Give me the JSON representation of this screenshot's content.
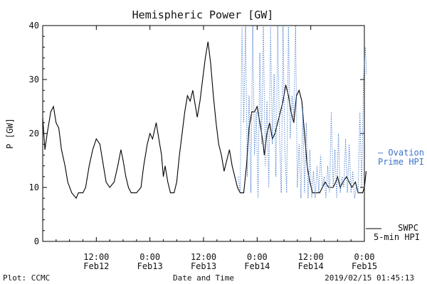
{
  "chart_data": {
    "type": "line",
    "title": "Hemispheric Power [GW]",
    "xlabel": "Date and Time",
    "ylabel": "P [GW]",
    "ylim": [
      0,
      40
    ],
    "yticks": [
      "0",
      "10",
      "20",
      "30",
      "40"
    ],
    "xlim_hours": [
      0,
      72
    ],
    "xticks": [
      {
        "time": "12:00",
        "date": "Feb12"
      },
      {
        "time": "0:00",
        "date": "Feb13"
      },
      {
        "time": "12:00",
        "date": "Feb13"
      },
      {
        "time": "0:00",
        "date": "Feb14"
      },
      {
        "time": "12:00",
        "date": "Feb14"
      },
      {
        "time": "0:00",
        "date": "Feb15"
      }
    ],
    "xtick_hours": [
      12,
      24,
      36,
      48,
      60,
      72
    ],
    "grid": false,
    "series": [
      {
        "name": "SWPC 5-min HPI",
        "color": "#000000",
        "style": "solid",
        "points": [
          [
            0,
            23
          ],
          [
            0.5,
            17
          ],
          [
            1,
            20
          ],
          [
            1.8,
            24
          ],
          [
            2.4,
            25
          ],
          [
            3,
            22
          ],
          [
            3.6,
            21
          ],
          [
            4.2,
            17
          ],
          [
            5,
            14
          ],
          [
            5.6,
            11
          ],
          [
            6.5,
            9
          ],
          [
            7.5,
            8
          ],
          [
            8,
            9
          ],
          [
            9,
            9
          ],
          [
            9.6,
            10
          ],
          [
            10.4,
            14
          ],
          [
            11.2,
            17
          ],
          [
            12,
            19
          ],
          [
            12.8,
            18
          ],
          [
            13.4,
            15
          ],
          [
            14.2,
            11
          ],
          [
            15,
            10
          ],
          [
            16,
            11
          ],
          [
            16.8,
            14
          ],
          [
            17.5,
            17
          ],
          [
            18,
            15
          ],
          [
            18.6,
            12
          ],
          [
            19.2,
            10
          ],
          [
            19.8,
            9
          ],
          [
            21,
            9
          ],
          [
            22,
            10
          ],
          [
            22.6,
            14
          ],
          [
            23.4,
            18
          ],
          [
            24,
            20
          ],
          [
            24.6,
            19
          ],
          [
            25.4,
            22
          ],
          [
            26,
            19
          ],
          [
            26.6,
            16
          ],
          [
            27,
            12
          ],
          [
            27.4,
            14
          ],
          [
            28,
            11
          ],
          [
            28.6,
            9
          ],
          [
            29.4,
            9
          ],
          [
            30,
            11
          ],
          [
            30.6,
            16
          ],
          [
            31.2,
            20
          ],
          [
            31.8,
            24
          ],
          [
            32.4,
            27
          ],
          [
            33,
            26
          ],
          [
            33.6,
            28
          ],
          [
            34,
            26
          ],
          [
            34.6,
            23
          ],
          [
            35.2,
            26
          ],
          [
            35.8,
            30
          ],
          [
            36.4,
            34
          ],
          [
            37,
            37
          ],
          [
            37.6,
            33
          ],
          [
            38.2,
            27
          ],
          [
            38.8,
            22
          ],
          [
            39.4,
            18
          ],
          [
            40,
            16
          ],
          [
            40.6,
            13
          ],
          [
            41.2,
            15
          ],
          [
            41.8,
            17
          ],
          [
            42.4,
            14
          ],
          [
            43,
            12
          ],
          [
            43.6,
            10
          ],
          [
            44.2,
            9
          ],
          [
            45,
            9
          ],
          [
            45.6,
            14
          ],
          [
            46.2,
            21
          ],
          [
            46.8,
            24
          ],
          [
            47.4,
            24
          ],
          [
            48,
            25
          ],
          [
            48.6,
            22
          ],
          [
            49.2,
            19
          ],
          [
            49.6,
            16
          ],
          [
            50.2,
            20
          ],
          [
            50.8,
            22
          ],
          [
            51.4,
            19
          ],
          [
            52,
            20
          ],
          [
            52.6,
            22
          ],
          [
            53.2,
            24
          ],
          [
            53.8,
            26
          ],
          [
            54.4,
            29
          ],
          [
            55,
            27
          ],
          [
            55.6,
            24
          ],
          [
            56.2,
            22
          ],
          [
            56.8,
            27
          ],
          [
            57.4,
            28
          ],
          [
            58,
            26
          ],
          [
            58.6,
            20
          ],
          [
            59.2,
            14
          ],
          [
            59.8,
            11
          ],
          [
            60.4,
            9
          ],
          [
            61.2,
            9
          ],
          [
            62,
            9
          ],
          [
            62.6,
            10
          ],
          [
            63.2,
            11
          ],
          [
            64,
            10
          ],
          [
            65,
            10
          ],
          [
            65.6,
            11
          ],
          [
            66,
            12
          ],
          [
            66.6,
            10
          ],
          [
            67.2,
            11
          ],
          [
            68,
            12
          ],
          [
            68.6,
            11
          ],
          [
            69.2,
            10
          ],
          [
            70,
            11
          ],
          [
            70.6,
            9
          ],
          [
            71.6,
            9
          ],
          [
            72,
            10
          ],
          [
            72.4,
            13
          ]
        ]
      },
      {
        "name": "Ovation Prime HPI",
        "color": "#3a74c9",
        "style": "dotted",
        "points": [
          [
            43.8,
            12
          ],
          [
            44.2,
            9
          ],
          [
            44.6,
            40
          ],
          [
            45,
            22
          ],
          [
            45.4,
            40
          ],
          [
            45.8,
            12
          ],
          [
            46.2,
            27
          ],
          [
            46.6,
            9
          ],
          [
            47,
            40
          ],
          [
            47.4,
            16
          ],
          [
            47.8,
            24
          ],
          [
            48.2,
            8
          ],
          [
            48.6,
            35
          ],
          [
            49,
            18
          ],
          [
            49.4,
            40
          ],
          [
            49.8,
            14
          ],
          [
            50.2,
            26
          ],
          [
            50.6,
            10
          ],
          [
            51,
            40
          ],
          [
            51.4,
            18
          ],
          [
            51.8,
            31
          ],
          [
            52.2,
            12
          ],
          [
            52.6,
            40
          ],
          [
            53,
            20
          ],
          [
            53.4,
            9
          ],
          [
            53.8,
            40
          ],
          [
            54.2,
            17
          ],
          [
            54.6,
            9
          ],
          [
            55,
            40
          ],
          [
            55.4,
            19
          ],
          [
            55.8,
            27
          ],
          [
            56.2,
            23
          ],
          [
            56.6,
            40
          ],
          [
            57,
            10
          ],
          [
            57.4,
            18
          ],
          [
            57.8,
            8
          ],
          [
            58.2,
            25
          ],
          [
            58.6,
            9
          ],
          [
            59,
            22
          ],
          [
            59.4,
            8
          ],
          [
            59.8,
            17
          ],
          [
            60.2,
            8
          ],
          [
            60.6,
            13
          ],
          [
            61,
            8
          ],
          [
            61.4,
            14
          ],
          [
            61.8,
            9
          ],
          [
            62.2,
            16
          ],
          [
            62.6,
            10
          ],
          [
            63,
            12
          ],
          [
            63.4,
            8
          ],
          [
            63.8,
            14
          ],
          [
            64.2,
            9
          ],
          [
            64.6,
            24
          ],
          [
            65,
            10
          ],
          [
            65.4,
            17
          ],
          [
            65.8,
            8
          ],
          [
            66.2,
            20
          ],
          [
            66.6,
            9
          ],
          [
            67,
            12
          ],
          [
            67.4,
            10
          ],
          [
            67.8,
            19
          ],
          [
            68.2,
            9
          ],
          [
            68.6,
            18
          ],
          [
            69,
            9
          ],
          [
            69.4,
            13
          ],
          [
            69.8,
            8
          ],
          [
            70.2,
            10
          ],
          [
            70.6,
            9
          ],
          [
            71,
            24
          ],
          [
            71.4,
            10
          ],
          [
            71.8,
            30
          ],
          [
            72.2,
            36
          ],
          [
            72.5,
            31
          ]
        ]
      }
    ],
    "legend": {
      "placement": "right",
      "swpc_line1": "SWPC",
      "swpc_line2": "5-min HPI",
      "ovation_line1": "— Ovation",
      "ovation_line2": "Prime HPI"
    }
  },
  "footer": {
    "plot_source": "Plot: CCMC",
    "timestamp": "2019/02/15 01:45:13"
  }
}
